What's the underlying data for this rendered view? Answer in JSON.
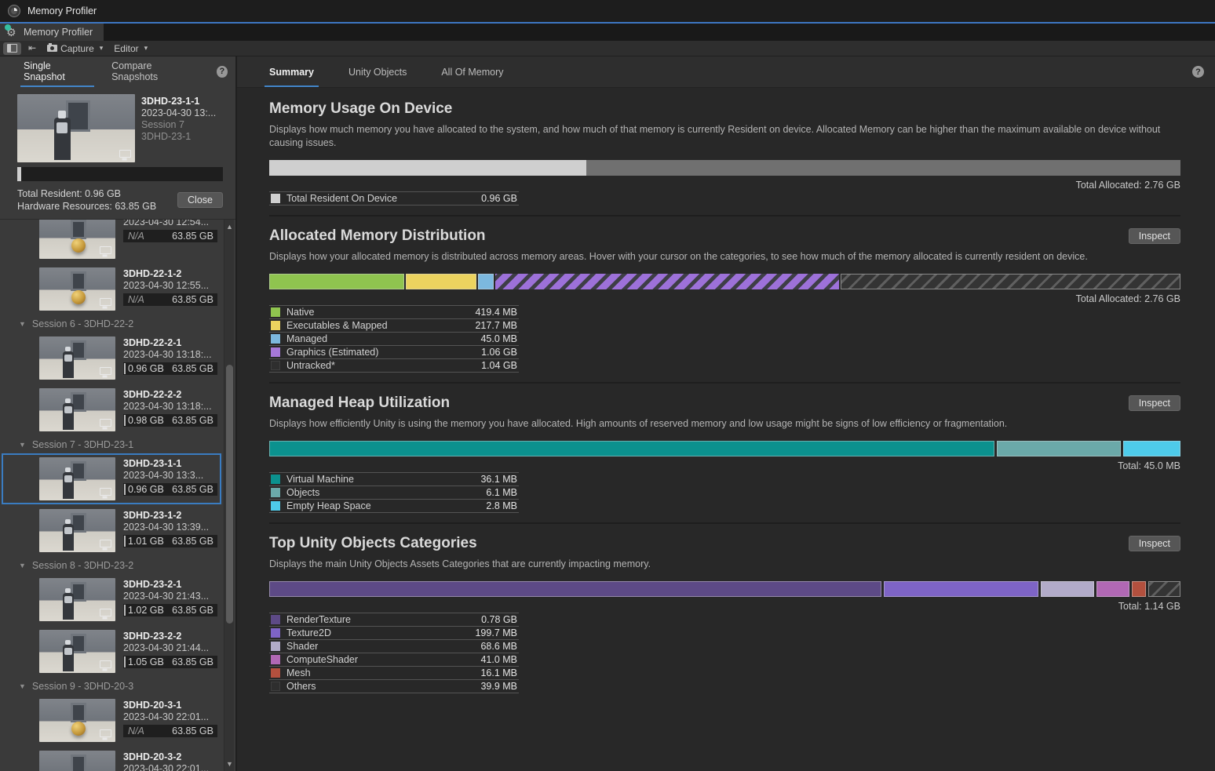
{
  "window": {
    "title": "Memory Profiler",
    "tab_label": "Memory Profiler"
  },
  "icons": {
    "dropdown": "▾",
    "collapse": "▼",
    "scroll_up": "▲",
    "scroll_down": "▼",
    "help": "?",
    "import": "⇤"
  },
  "toolbar": {
    "capture_label": "Capture",
    "editor_label": "Editor"
  },
  "sidebar": {
    "tabs": [
      {
        "label": "Single Snapshot",
        "active": true
      },
      {
        "label": "Compare Snapshots",
        "active": false
      }
    ],
    "card": {
      "name": "3DHD-23-1-1",
      "date": "2023-04-30 13:...",
      "session": "Session 7",
      "build": "3DHD-23-1",
      "total_resident": "Total Resident: 0.96 GB",
      "hardware_resources": "Hardware Resources: 63.85 GB",
      "close_label": "Close"
    },
    "list": [
      {
        "type": "snapshot",
        "date": "2023-04-30 12:54...",
        "mem": "N/A",
        "hw": "63.85 GB",
        "na": true,
        "partial": true,
        "fig": "ball"
      },
      {
        "type": "snapshot",
        "name": "3DHD-22-1-2",
        "date": "2023-04-30 12:55...",
        "mem": "N/A",
        "hw": "63.85 GB",
        "na": true,
        "fig": "ball"
      },
      {
        "type": "session",
        "label": "Session 6 - 3DHD-22-2"
      },
      {
        "type": "snapshot",
        "name": "3DHD-22-2-1",
        "date": "2023-04-30 13:18:...",
        "mem": "0.96 GB",
        "hw": "63.85 GB",
        "fig": "robot"
      },
      {
        "type": "snapshot",
        "name": "3DHD-22-2-2",
        "date": "2023-04-30 13:18:...",
        "mem": "0.98 GB",
        "hw": "63.85 GB",
        "fig": "robot"
      },
      {
        "type": "session",
        "label": "Session 7 - 3DHD-23-1"
      },
      {
        "type": "snapshot",
        "name": "3DHD-23-1-1",
        "date": "2023-04-30 13:3...",
        "mem": "0.96 GB",
        "hw": "63.85 GB",
        "selected": true,
        "fig": "robot"
      },
      {
        "type": "snapshot",
        "name": "3DHD-23-1-2",
        "date": "2023-04-30 13:39...",
        "mem": "1.01 GB",
        "hw": "63.85 GB",
        "fig": "robot"
      },
      {
        "type": "session",
        "label": "Session 8 - 3DHD-23-2"
      },
      {
        "type": "snapshot",
        "name": "3DHD-23-2-1",
        "date": "2023-04-30 21:43...",
        "mem": "1.02 GB",
        "hw": "63.85 GB",
        "fig": "robot"
      },
      {
        "type": "snapshot",
        "name": "3DHD-23-2-2",
        "date": "2023-04-30 21:44...",
        "mem": "1.05 GB",
        "hw": "63.85 GB",
        "fig": "robot"
      },
      {
        "type": "session",
        "label": "Session 9 - 3DHD-20-3"
      },
      {
        "type": "snapshot",
        "name": "3DHD-20-3-1",
        "date": "2023-04-30 22:01...",
        "mem": "N/A",
        "hw": "63.85 GB",
        "na": true,
        "fig": "ball"
      },
      {
        "type": "snapshot",
        "name": "3DHD-20-3-2",
        "date": "2023-04-30 22:01...",
        "mem": "N/A",
        "hw": "63.85 GB",
        "na": true,
        "fig": "ball"
      }
    ]
  },
  "main": {
    "tabs": [
      {
        "label": "Summary",
        "active": true
      },
      {
        "label": "Unity Objects",
        "active": false
      },
      {
        "label": "All Of Memory",
        "active": false
      }
    ],
    "inspect_label": "Inspect",
    "sections": [
      {
        "title": "Memory Usage On Device",
        "description": "Displays how much memory you have allocated to the system, and how much of that memory is currently Resident on device. Allocated Memory can be higher than the maximum available on device without causing issues.",
        "inspect": false,
        "total_label": "Total Allocated: 2.76 GB",
        "bar": {
          "gap": 0,
          "segments": [
            {
              "value_mb": 983,
              "color": "#cfcfcf",
              "plain": true
            },
            {
              "value_mb": 1843,
              "color": "#707070",
              "plain": true
            }
          ]
        },
        "legend": [
          {
            "label": "Total Resident On Device",
            "value": "0.96 GB",
            "swatch": "#cfcfcf"
          }
        ]
      },
      {
        "title": "Allocated Memory Distribution",
        "description": "Displays how your allocated memory is distributed across memory areas. Hover with your cursor on the categories, to see how much of the memory allocated is currently resident on device.",
        "inspect": true,
        "total_label": "Total Allocated: 2.76 GB",
        "bar": {
          "gap": 2,
          "segments": [
            {
              "value_mb": 419.4,
              "color": "#8fc44f"
            },
            {
              "value_mb": 217.7,
              "color": "#ecd35f"
            },
            {
              "value_mb": 45.0,
              "color": "#7cb8de"
            },
            {
              "value_mb": 1085.0,
              "pattern": "hatch-purple"
            },
            {
              "value_mb": 1065.0,
              "pattern": "hatch-gray"
            }
          ]
        },
        "legend": [
          {
            "label": "Native",
            "value": "419.4 MB",
            "swatch": "#8fc44f"
          },
          {
            "label": "Executables & Mapped",
            "value": "217.7 MB",
            "swatch": "#ecd35f"
          },
          {
            "label": "Managed",
            "value": "45.0 MB",
            "swatch": "#7cb8de"
          },
          {
            "label": "Graphics (Estimated)",
            "value": "1.06 GB",
            "swatch": "#a678d8"
          },
          {
            "label": "Untracked*",
            "value": "1.04 GB",
            "swatch": "none"
          }
        ]
      },
      {
        "title": "Managed Heap Utilization",
        "description": "Displays how efficiently Unity is using the memory you have allocated. High amounts of reserved memory and low usage might be signs of low efficiency or fragmentation.",
        "inspect": true,
        "total_label": "Total: 45.0 MB",
        "bar": {
          "gap": 3,
          "segments": [
            {
              "value_mb": 36.1,
              "color": "#0b918e"
            },
            {
              "value_mb": 6.1,
              "color": "#6ba9a9"
            },
            {
              "value_mb": 2.8,
              "color": "#4ecbea"
            }
          ]
        },
        "legend": [
          {
            "label": "Virtual Machine",
            "value": "36.1 MB",
            "swatch": "#0b918e"
          },
          {
            "label": "Objects",
            "value": "6.1 MB",
            "swatch": "#6ba9a9"
          },
          {
            "label": "Empty Heap Space",
            "value": "2.8 MB",
            "swatch": "#4ecbea"
          }
        ]
      },
      {
        "title": "Top Unity Objects Categories",
        "description": "Displays the main Unity Objects Assets Categories that are currently impacting memory.",
        "inspect": true,
        "total_label": "Total: 1.14 GB",
        "bar": {
          "gap": 3,
          "segments": [
            {
              "value_mb": 798.7,
              "color": "#5d4a86"
            },
            {
              "value_mb": 199.7,
              "color": "#7e64c6"
            },
            {
              "value_mb": 68.6,
              "color": "#b2abc9"
            },
            {
              "value_mb": 41.0,
              "color": "#b168b4"
            },
            {
              "value_mb": 16.1,
              "color": "#b3503e"
            },
            {
              "value_mb": 39.9,
              "pattern": "hatch-gray"
            }
          ]
        },
        "legend": [
          {
            "label": "RenderTexture",
            "value": "0.78 GB",
            "swatch": "#5d4a86"
          },
          {
            "label": "Texture2D",
            "value": "199.7 MB",
            "swatch": "#7e64c6"
          },
          {
            "label": "Shader",
            "value": "68.6 MB",
            "swatch": "#b2abc9"
          },
          {
            "label": "ComputeShader",
            "value": "41.0 MB",
            "swatch": "#b168b4"
          },
          {
            "label": "Mesh",
            "value": "16.1 MB",
            "swatch": "#b3503e"
          },
          {
            "label": "Others",
            "value": "39.9 MB",
            "swatch": "none"
          }
        ]
      }
    ]
  }
}
